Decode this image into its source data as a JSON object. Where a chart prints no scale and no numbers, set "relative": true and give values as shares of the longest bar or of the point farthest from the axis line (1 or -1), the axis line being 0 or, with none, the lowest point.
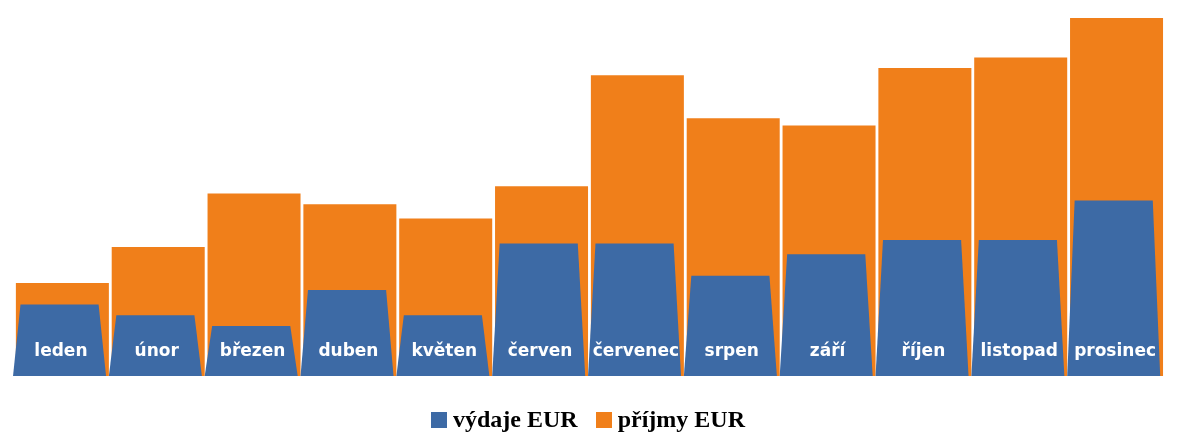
{
  "chart_data": {
    "type": "bar",
    "relative": true,
    "categories": [
      "leden",
      "únor",
      "březen",
      "duben",
      "květen",
      "červen",
      "červenec",
      "srpen",
      "září",
      "říjen",
      "listopad",
      "prosinec"
    ],
    "series": [
      {
        "name": "výdaje EUR",
        "color": "#3d6aa5",
        "values": [
          0.2,
          0.17,
          0.14,
          0.24,
          0.17,
          0.37,
          0.37,
          0.28,
          0.34,
          0.38,
          0.38,
          0.49
        ]
      },
      {
        "name": "příjmy EUR",
        "color": "#f07f1a",
        "values": [
          0.26,
          0.36,
          0.51,
          0.48,
          0.44,
          0.53,
          0.84,
          0.72,
          0.7,
          0.86,
          0.89,
          1.0
        ]
      }
    ],
    "legend": "bottom",
    "grid": false
  }
}
